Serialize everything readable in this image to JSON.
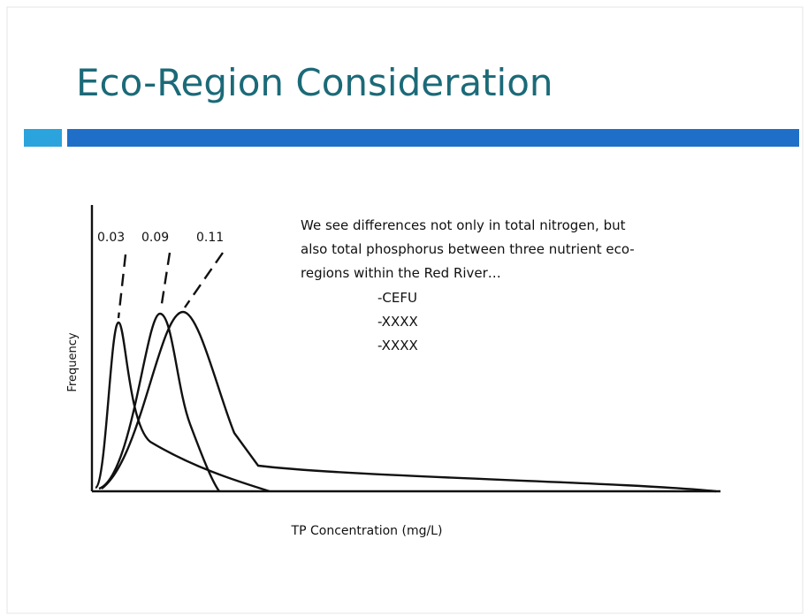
{
  "title": "Eco-Region Consideration",
  "body": {
    "lines": [
      "We see differences not only in total nitrogen, but",
      "also total phosphorus between three nutrient eco-",
      "regions within the Red River…"
    ],
    "items": [
      "-CEFU",
      "-XXXX",
      "-XXXX"
    ]
  },
  "diagram": {
    "peak_labels": [
      "0.03",
      "0.09",
      "0.11"
    ],
    "y_axis_label": "Frequency",
    "x_axis_label": "TP Concentration (mg/L)"
  }
}
